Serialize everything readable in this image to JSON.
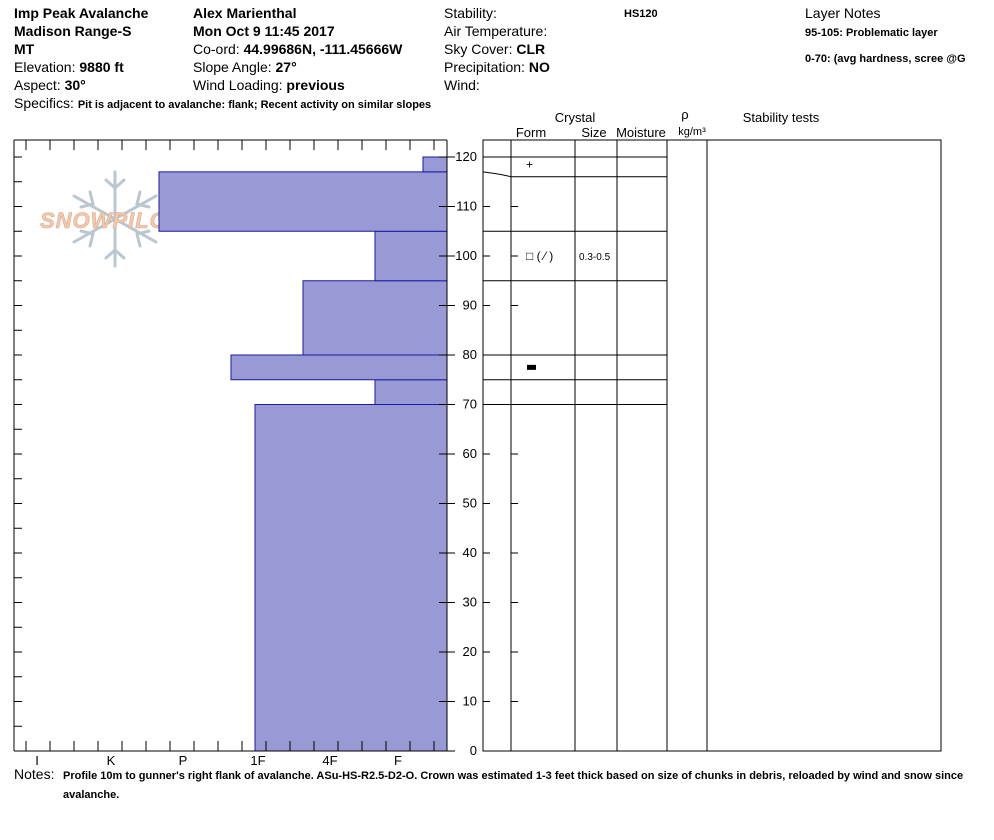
{
  "header": {
    "pit_name": "Imp Peak Avalanche",
    "range": "Madison Range-S",
    "state": "MT",
    "elevation_label": "Elevation:",
    "elevation": "9880 ft",
    "aspect_label": "Aspect:",
    "aspect": "30°",
    "observer": "Alex Marienthal",
    "datetime": "Mon Oct 9 11:45 2017",
    "coord_label": "Co-ord:",
    "coord": "44.99686N, -111.45666W",
    "slope_label": "Slope Angle:",
    "slope": "27°",
    "wind_loading_label": "Wind Loading:",
    "wind_loading": "previous",
    "stability_label": "Stability:",
    "hs": "HS120",
    "air_temp_label": "Air Temperature:",
    "sky_label": "Sky Cover:",
    "sky": "CLR",
    "precip_label": "Precipitation:",
    "precip": "NO",
    "wind_label": "Wind:",
    "layer_notes_title": "Layer Notes",
    "layer_note_1": "95-105: Problematic layer",
    "layer_note_2": "0-70: (avg hardness, scree @G",
    "specifics_label": "Specifics:",
    "specifics": "Pit is adjacent to avalanche: flank; Recent activity on similar slopes"
  },
  "columns": {
    "crystal": "Crystal",
    "form": "Form",
    "size": "Size",
    "moisture": "Moisture",
    "rho": "ρ",
    "density_unit": "kg/m³",
    "stability_tests": "Stability tests"
  },
  "notes": {
    "label": "Notes:",
    "text": "Profile 10m to gunner's right flank of avalanche. ASu-HS-R2.5-D2-O. Crown was estimated 1-3 feet thick based on size of chunks in debris, reloaded by wind and snow since avalanche."
  },
  "logo_text": "SNOWPILOT",
  "colors": {
    "hardness_fill": "#9999d6",
    "hardness_stroke": "#1a1aa0",
    "logo_text": "#f3c9ad",
    "logo_flake": "#b9c7d1"
  },
  "chart_data": {
    "type": "bar",
    "orientation": "horizontal",
    "y_unit": "cm",
    "ylim": [
      0,
      120
    ],
    "y_ticks": [
      0,
      10,
      20,
      30,
      40,
      50,
      60,
      70,
      80,
      90,
      100,
      110,
      120
    ],
    "hardness_scale": [
      "I",
      "K",
      "P",
      "1F",
      "4F",
      "F"
    ],
    "hardness_scale_note": "hardness index from fist (F) toward ice (I)",
    "layers": [
      {
        "bottom": 0,
        "top": 70,
        "hardness": "1F"
      },
      {
        "bottom": 70,
        "top": 75,
        "hardness": "4F-"
      },
      {
        "bottom": 75,
        "top": 80,
        "hardness": "1F+"
      },
      {
        "bottom": 80,
        "top": 95,
        "hardness": "4F"
      },
      {
        "bottom": 95,
        "top": 105,
        "hardness": "4F-"
      },
      {
        "bottom": 105,
        "top": 117,
        "hardness": "P"
      },
      {
        "bottom": 117,
        "top": 120,
        "hardness": "F"
      }
    ],
    "crystal_layer_boundaries": [
      70,
      75,
      80,
      95,
      105,
      116,
      120
    ],
    "crystal_observations": [
      {
        "height": 118.5,
        "form": "+"
      },
      {
        "height": 100,
        "form": "□ ( ⁄ )",
        "size": "0.3-0.5"
      },
      {
        "height": 77.5,
        "form": "▬"
      }
    ]
  }
}
